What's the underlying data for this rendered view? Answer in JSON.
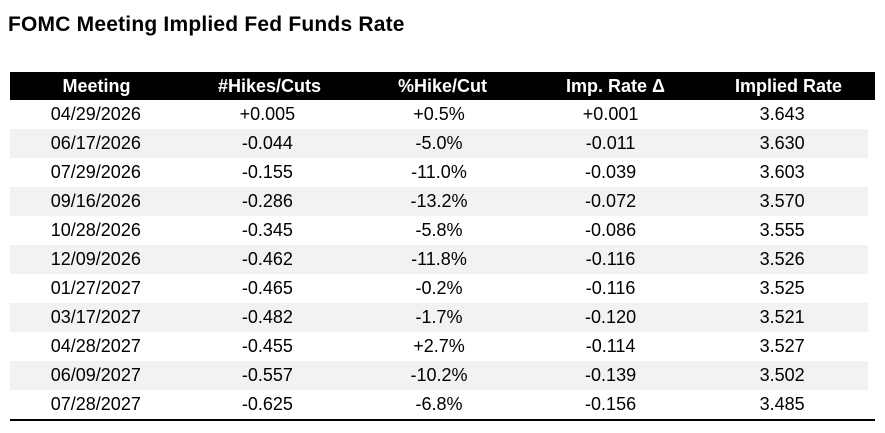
{
  "title": "FOMC Meeting Implied Fed Funds Rate",
  "table": {
    "columns": [
      "Meeting",
      "#Hikes/Cuts",
      "%Hike/Cut",
      "Imp. Rate Δ",
      "Implied Rate"
    ],
    "rows": [
      [
        "04/29/2026",
        "+0.005",
        "+0.5%",
        "+0.001",
        "3.643"
      ],
      [
        "06/17/2026",
        "-0.044",
        "-5.0%",
        "-0.011",
        "3.630"
      ],
      [
        "07/29/2026",
        "-0.155",
        "-11.0%",
        "-0.039",
        "3.603"
      ],
      [
        "09/16/2026",
        "-0.286",
        "-13.2%",
        "-0.072",
        "3.570"
      ],
      [
        "10/28/2026",
        "-0.345",
        "-5.8%",
        "-0.086",
        "3.555"
      ],
      [
        "12/09/2026",
        "-0.462",
        "-11.8%",
        "-0.116",
        "3.526"
      ],
      [
        "01/27/2027",
        "-0.465",
        "-0.2%",
        "-0.116",
        "3.525"
      ],
      [
        "03/17/2027",
        "-0.482",
        "-1.7%",
        "-0.120",
        "3.521"
      ],
      [
        "04/28/2027",
        "-0.455",
        "+2.7%",
        "-0.114",
        "3.527"
      ],
      [
        "06/09/2027",
        "-0.557",
        "-10.2%",
        "-0.139",
        "3.502"
      ],
      [
        "07/28/2027",
        "-0.625",
        "-6.8%",
        "-0.156",
        "3.485"
      ]
    ]
  },
  "colors": {
    "header_bg": "#000000",
    "header_text": "#ffffff",
    "row_stripe": "#f2f2f2",
    "text": "#000000",
    "background": "#ffffff"
  },
  "chart_data": {
    "type": "table",
    "title": "FOMC Meeting Implied Fed Funds Rate",
    "columns": [
      "Meeting",
      "#Hikes/Cuts",
      "%Hike/Cut",
      "Imp. Rate Δ",
      "Implied Rate"
    ],
    "meetings": [
      "04/29/2026",
      "06/17/2026",
      "07/29/2026",
      "09/16/2026",
      "10/28/2026",
      "12/09/2026",
      "01/27/2027",
      "03/17/2027",
      "04/28/2027",
      "06/09/2027",
      "07/28/2027"
    ],
    "series": [
      {
        "name": "#Hikes/Cuts",
        "values": [
          0.005,
          -0.044,
          -0.155,
          -0.286,
          -0.345,
          -0.462,
          -0.465,
          -0.482,
          -0.455,
          -0.557,
          -0.625
        ]
      },
      {
        "name": "%Hike/Cut",
        "values": [
          0.5,
          -5.0,
          -11.0,
          -13.2,
          -5.8,
          -11.8,
          -0.2,
          -1.7,
          2.7,
          -10.2,
          -6.8
        ]
      },
      {
        "name": "Imp. Rate Δ",
        "values": [
          0.001,
          -0.011,
          -0.039,
          -0.072,
          -0.086,
          -0.116,
          -0.116,
          -0.12,
          -0.114,
          -0.139,
          -0.156
        ]
      },
      {
        "name": "Implied Rate",
        "values": [
          3.643,
          3.63,
          3.603,
          3.57,
          3.555,
          3.526,
          3.525,
          3.521,
          3.527,
          3.502,
          3.485
        ]
      }
    ],
    "layout": {
      "header_style": "black-bar-white-text",
      "zebra_striping": true,
      "grid": false
    }
  }
}
